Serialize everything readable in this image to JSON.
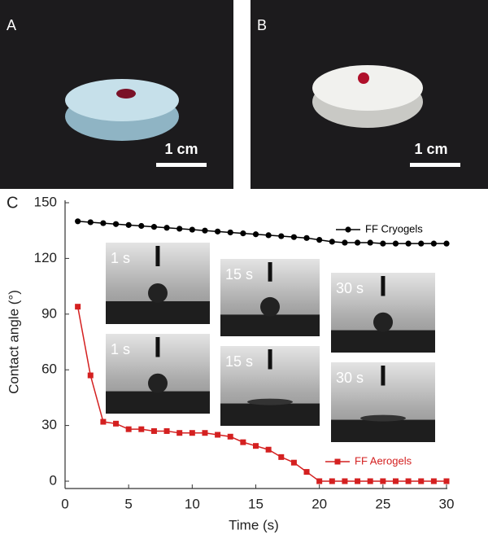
{
  "photos": [
    {
      "label": "A",
      "scale": "1 cm"
    },
    {
      "label": "B",
      "scale": "1 cm"
    }
  ],
  "chart_data": {
    "type": "line",
    "panel_label": "C",
    "x_label": "Time (s)",
    "y_label": "Contact angle (°)",
    "x": [
      1,
      2,
      3,
      4,
      5,
      6,
      7,
      8,
      9,
      10,
      11,
      12,
      13,
      14,
      15,
      16,
      17,
      18,
      19,
      20,
      21,
      22,
      23,
      24,
      25,
      26,
      27,
      28,
      29,
      30
    ],
    "series": [
      {
        "name": "FF Cryogels",
        "color": "#000000",
        "marker": "circle",
        "values": [
          140,
          139.5,
          139,
          138.5,
          138,
          137.5,
          137,
          136.5,
          136,
          135.5,
          135,
          134.5,
          134,
          133.5,
          133,
          132.5,
          132,
          131.5,
          131,
          130,
          129,
          128.5,
          128.5,
          128.5,
          128,
          128,
          128,
          128,
          128,
          128
        ]
      },
      {
        "name": "FF Aerogels",
        "color": "#d42020",
        "marker": "square",
        "values": [
          94,
          57,
          32,
          31,
          28,
          28,
          27,
          27,
          26,
          26,
          26,
          25,
          24,
          21,
          19,
          17,
          13,
          10,
          5,
          0,
          0,
          0,
          0,
          0,
          0,
          0,
          0,
          0,
          0,
          0
        ]
      }
    ],
    "insets": [
      "1 s",
      "1 s",
      "15 s",
      "15 s",
      "30 s",
      "30 s"
    ],
    "xlim": [
      0,
      30
    ],
    "xticks": [
      0,
      5,
      10,
      15,
      20,
      25,
      30
    ],
    "ylim": [
      0,
      150
    ],
    "yticks": [
      0,
      30,
      60,
      90,
      120,
      150
    ],
    "grid": false
  }
}
